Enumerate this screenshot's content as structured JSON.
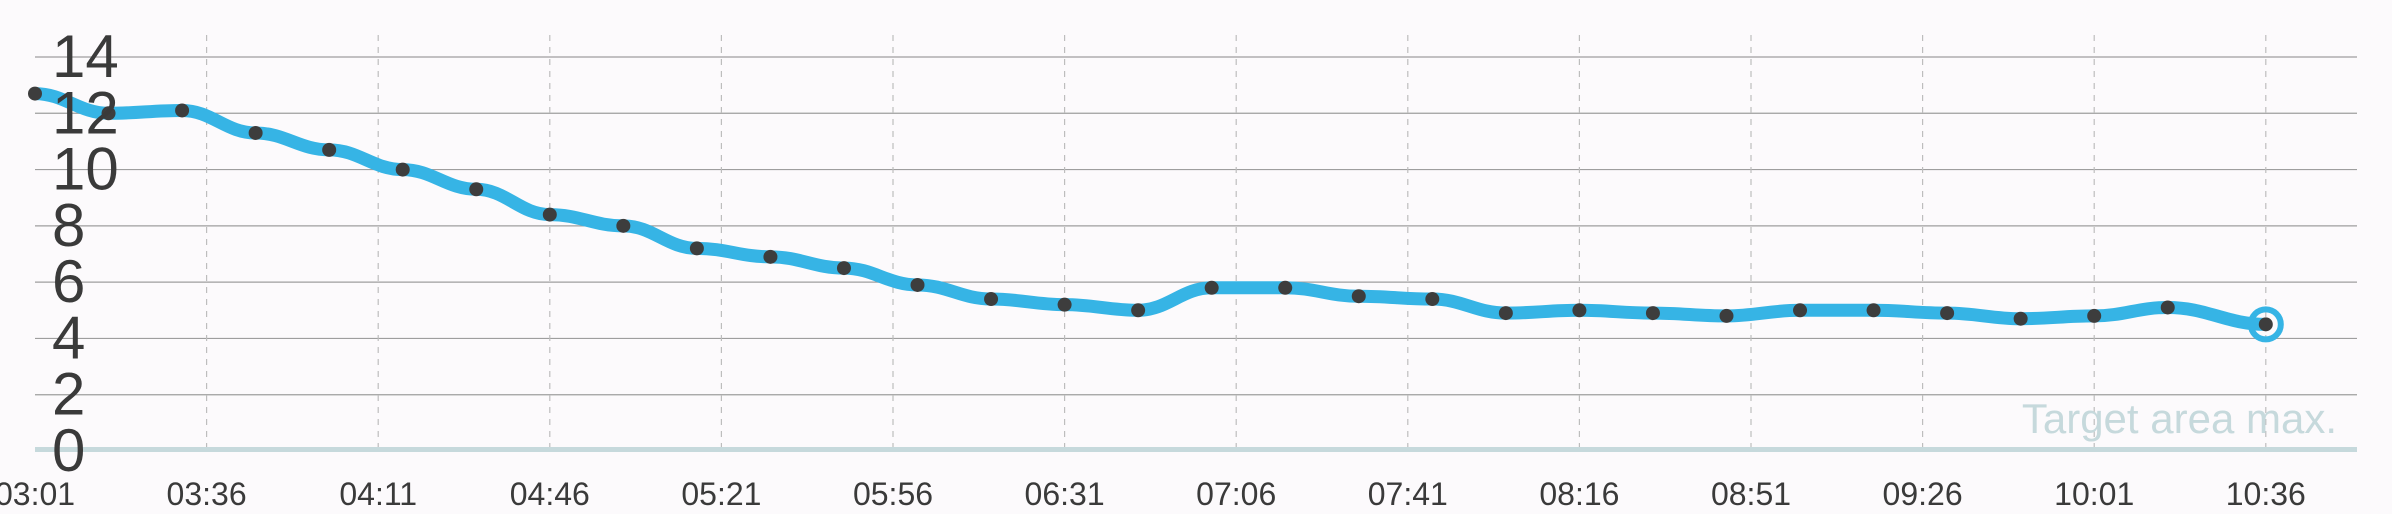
{
  "chart_data": {
    "type": "line",
    "title": "",
    "xlabel": "",
    "ylabel": "",
    "ylim": [
      0,
      14
    ],
    "y_ticks": [
      "0",
      "2",
      "4",
      "6",
      "8",
      "10",
      "12",
      "14"
    ],
    "x_ticks": [
      "03:01",
      "03:36",
      "04:11",
      "04:46",
      "05:21",
      "05:56",
      "06:31",
      "07:06",
      "07:41",
      "08:16",
      "08:51",
      "09:26",
      "10:01",
      "10:36"
    ],
    "grid": true,
    "target_label": "Target area max.",
    "colors": {
      "line": "#36b4e5",
      "point": "#3d3d3d",
      "target": "#c6d9dc",
      "grid": "#9e9e9e"
    },
    "series": [
      {
        "x": [
          "03:01",
          "03:16",
          "03:31",
          "03:46",
          "04:01",
          "04:16",
          "04:31",
          "04:46",
          "05:01",
          "05:16",
          "05:31",
          "05:46",
          "06:01",
          "06:16",
          "06:31",
          "06:46",
          "07:01",
          "07:16",
          "07:31",
          "07:46",
          "08:01",
          "08:16",
          "08:31",
          "08:46",
          "09:01",
          "09:16",
          "09:31",
          "09:46",
          "10:01",
          "10:16",
          "10:36"
        ],
        "values": [
          12.7,
          12.0,
          12.1,
          11.3,
          10.7,
          10.0,
          9.3,
          8.4,
          8.0,
          7.2,
          6.9,
          6.5,
          5.9,
          5.4,
          5.2,
          5.0,
          5.8,
          5.8,
          5.5,
          5.4,
          4.9,
          5.0,
          4.9,
          4.8,
          5.0,
          5.0,
          4.9,
          4.7,
          4.8,
          5.1,
          4.5
        ]
      }
    ]
  }
}
